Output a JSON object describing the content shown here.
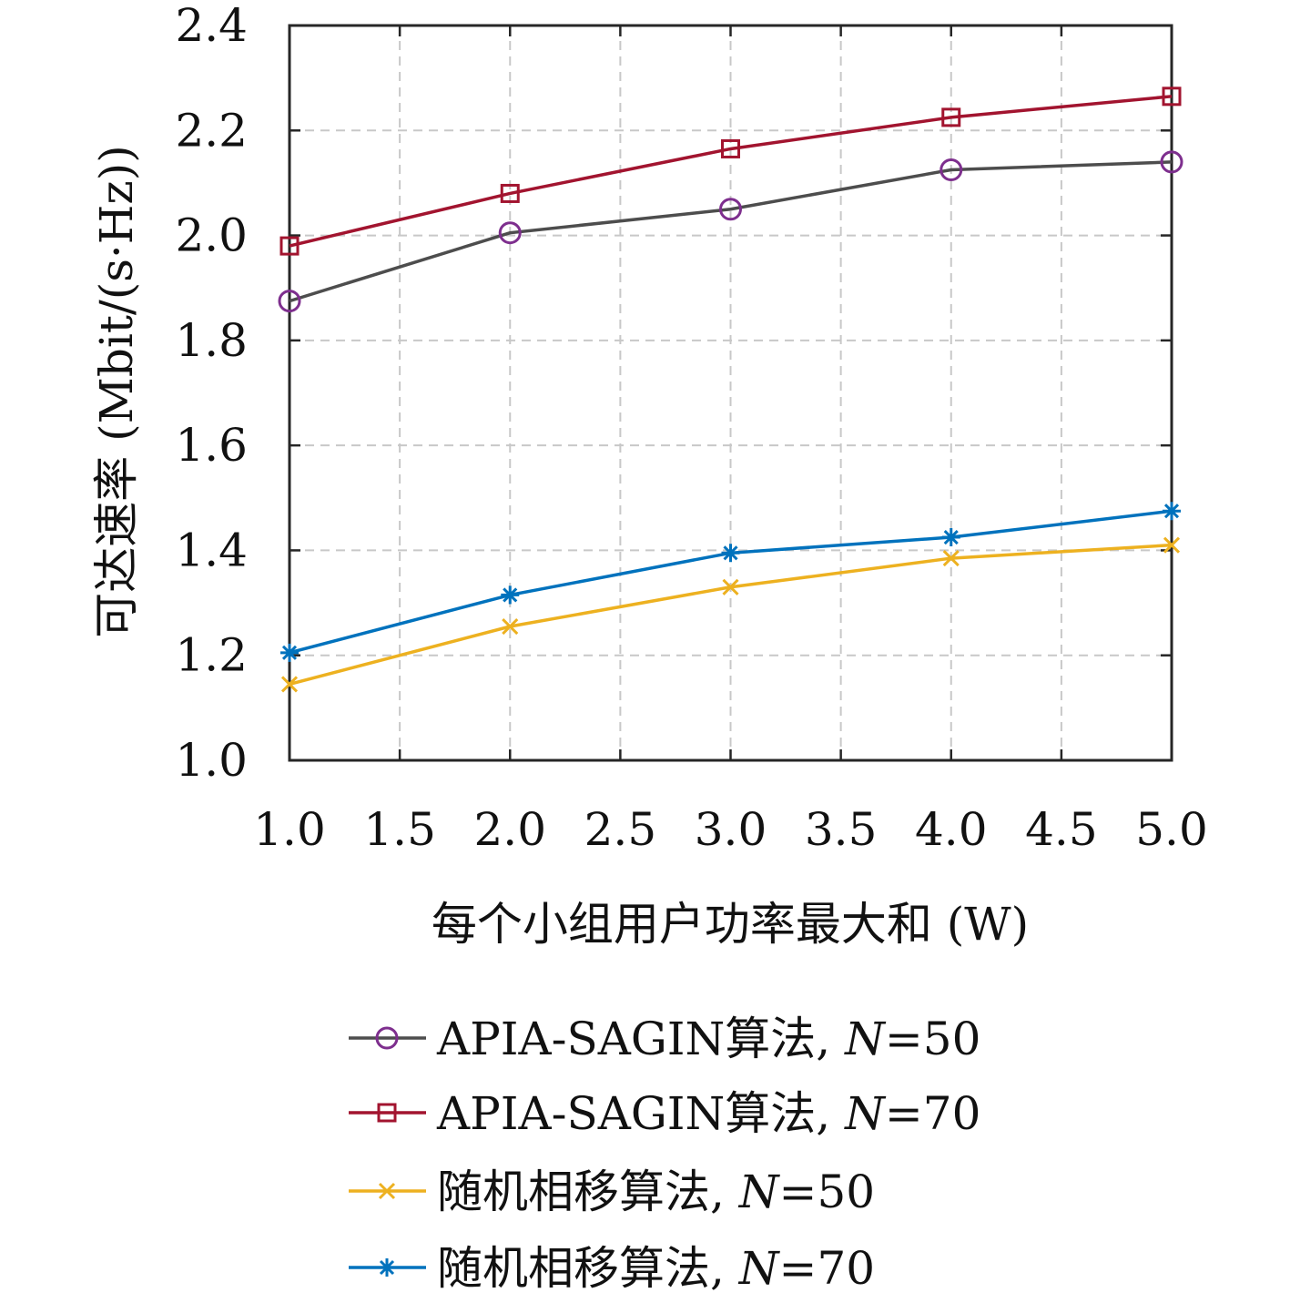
{
  "chart_data": {
    "type": "line",
    "xlabel": "每个小组用户功率最大和 (W)",
    "ylabel": "可达速率 (Mbit/(s·Hz))",
    "xlim": [
      1.0,
      5.0
    ],
    "ylim": [
      1.0,
      2.4
    ],
    "x_ticks": [
      "1.0",
      "1.5",
      "2.0",
      "2.5",
      "3.0",
      "3.5",
      "4.0",
      "4.5",
      "5.0"
    ],
    "y_ticks": [
      "1.0",
      "1.2",
      "1.4",
      "1.6",
      "1.8",
      "2.0",
      "2.2",
      "2.4"
    ],
    "grid": true,
    "legend_position": "below",
    "x": [
      1,
      2,
      3,
      4,
      5
    ],
    "series": [
      {
        "name": "APIA-SAGIN算法, N=50",
        "label_main": "APIA-SAGIN算法,",
        "label_var": "N",
        "label_val": "=50",
        "values": [
          1.875,
          2.005,
          2.05,
          2.125,
          2.14
        ],
        "color": "#4d4d4d",
        "marker_color": "#7e2f8e",
        "marker": "circle"
      },
      {
        "name": "APIA-SAGIN算法, N=70",
        "label_main": "APIA-SAGIN算法,",
        "label_var": "N",
        "label_val": "=70",
        "values": [
          1.98,
          2.08,
          2.165,
          2.225,
          2.265
        ],
        "color": "#a2142f",
        "marker_color": "#a2142f",
        "marker": "square"
      },
      {
        "name": "随机相移算法, N=50",
        "label_main": "随机相移算法,",
        "label_var": "N",
        "label_val": "=50",
        "values": [
          1.145,
          1.255,
          1.33,
          1.385,
          1.41
        ],
        "color": "#edb120",
        "marker_color": "#edb120",
        "marker": "x"
      },
      {
        "name": "随机相移算法, N=70",
        "label_main": "随机相移算法,",
        "label_var": "N",
        "label_val": "=70",
        "values": [
          1.205,
          1.315,
          1.395,
          1.425,
          1.475
        ],
        "color": "#0072bd",
        "marker_color": "#0072bd",
        "marker": "star"
      }
    ]
  }
}
